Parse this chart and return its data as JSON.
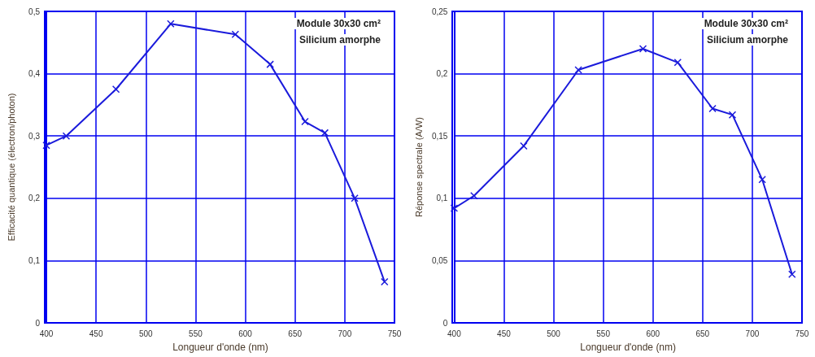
{
  "chart_data": [
    {
      "type": "line",
      "xlabel": "Longueur d'onde (nm)",
      "ylabel": "Efficacité quantique (électron/photon)",
      "annotations": [
        "Module 30x30 cm²",
        "Silicium amorphe"
      ],
      "x": [
        400,
        420,
        470,
        525,
        590,
        625,
        660,
        680,
        710,
        740
      ],
      "series": [
        {
          "color": "#1a1adb",
          "values": [
            0.285,
            0.3,
            0.375,
            0.48,
            0.463,
            0.415,
            0.323,
            0.305,
            0.2,
            0.066
          ]
        }
      ],
      "xlim": [
        400,
        750
      ],
      "xticks": [
        400,
        450,
        500,
        550,
        600,
        650,
        700,
        750
      ],
      "ylim": [
        0,
        0.5
      ],
      "yticks": [
        {
          "value": 0,
          "label": "0"
        },
        {
          "value": 0.1,
          "label": "0,1"
        },
        {
          "value": 0.2,
          "label": "0,2"
        },
        {
          "value": 0.3,
          "label": "0,3"
        },
        {
          "value": 0.4,
          "label": "0,4"
        },
        {
          "value": 0.5,
          "label": "0,5"
        }
      ],
      "grid": true,
      "marker": "cross",
      "line_style": "solid"
    },
    {
      "type": "line",
      "xlabel": "Longueur d'onde (nm)",
      "ylabel": "Réponse spectrale (A/W)",
      "annotations": [
        "Module 30x30 cm²",
        "Silicium amorphe"
      ],
      "x": [
        400,
        420,
        470,
        525,
        590,
        625,
        660,
        680,
        710,
        740
      ],
      "series": [
        {
          "color": "#1a1adb",
          "values": [
            0.092,
            0.102,
            0.142,
            0.203,
            0.22,
            0.209,
            0.172,
            0.167,
            0.115,
            0.039
          ]
        }
      ],
      "xlim": [
        400,
        750
      ],
      "xticks": [
        400,
        450,
        500,
        550,
        600,
        650,
        700,
        750
      ],
      "ylim": [
        0,
        0.25
      ],
      "yticks": [
        {
          "value": 0,
          "label": "0"
        },
        {
          "value": 0.05,
          "label": "0,05"
        },
        {
          "value": 0.1,
          "label": "0,1"
        },
        {
          "value": 0.15,
          "label": "0,15"
        },
        {
          "value": 0.2,
          "label": "0,2"
        },
        {
          "value": 0.25,
          "label": "0,25"
        }
      ],
      "grid": true,
      "marker": "cross",
      "line_style": "solid"
    }
  ]
}
